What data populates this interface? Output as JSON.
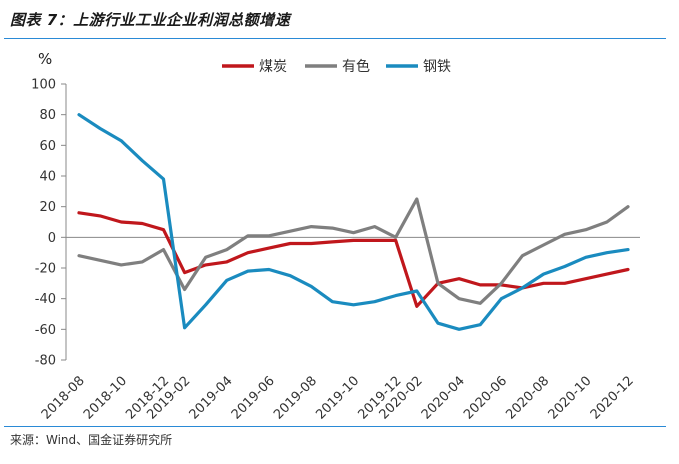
{
  "header": {
    "title": "图表 7：上游行业工业企业利润总额增速"
  },
  "footer": {
    "source": "来源：Wind、国金证券研究所"
  },
  "chart_data": {
    "type": "line",
    "unit": "%",
    "ylim": [
      -80,
      100
    ],
    "yticks": [
      100,
      80,
      60,
      40,
      20,
      0,
      -20,
      -40,
      -60,
      -80
    ],
    "x": [
      "2018-08",
      "2018-09",
      "2018-10",
      "2018-11",
      "2018-12",
      "2019-02",
      "2019-03",
      "2019-04",
      "2019-05",
      "2019-06",
      "2019-07",
      "2019-08",
      "2019-09",
      "2019-10",
      "2019-11",
      "2019-12",
      "2020-02",
      "2020-03",
      "2020-04",
      "2020-05",
      "2020-06",
      "2020-07",
      "2020-08",
      "2020-09",
      "2020-10",
      "2020-11",
      "2020-12"
    ],
    "xtick_labels": [
      "2018-08",
      "2018-10",
      "2018-12",
      "2019-02",
      "2019-04",
      "2019-06",
      "2019-08",
      "2019-10",
      "2019-12",
      "2020-02",
      "2020-04",
      "2020-06",
      "2020-08",
      "2020-10",
      "2020-12"
    ],
    "legend_position": "top",
    "grid": false,
    "series": [
      {
        "name": "煤炭",
        "color": "#c0171c",
        "values": [
          16,
          14,
          10,
          9,
          5,
          -23,
          -18,
          -16,
          -10,
          -7,
          -4,
          -4,
          -3,
          -2,
          -2,
          -2,
          -45,
          -30,
          -27,
          -31,
          -31,
          -33,
          -30,
          -30,
          -27,
          -24,
          -21
        ]
      },
      {
        "name": "有色",
        "color": "#7f7f7f",
        "values": [
          -12,
          -15,
          -18,
          -16,
          -8,
          -34,
          -13,
          -8,
          1,
          1,
          4,
          7,
          6,
          3,
          7,
          0,
          25,
          -30,
          -40,
          -43,
          -30,
          -12,
          -5,
          2,
          5,
          10,
          20
        ]
      },
      {
        "name": "钢铁",
        "color": "#1a8bbf",
        "values": [
          80,
          71,
          63,
          50,
          38,
          -59,
          -44,
          -28,
          -22,
          -21,
          -25,
          -32,
          -42,
          -44,
          -42,
          -38,
          -35,
          -56,
          -60,
          -57,
          -40,
          -33,
          -24,
          -19,
          -13,
          -10,
          -8
        ]
      }
    ]
  }
}
